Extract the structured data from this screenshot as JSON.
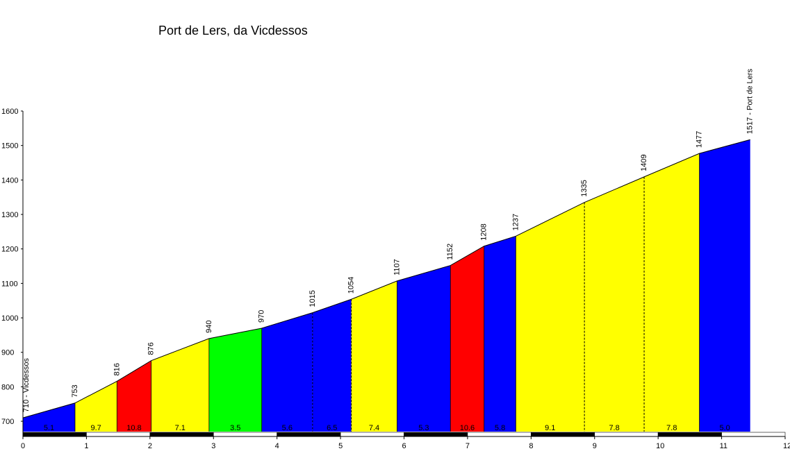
{
  "chart_data": {
    "type": "area",
    "title": "Port de Lers, da Vicdessos",
    "xlim": [
      0,
      12
    ],
    "ylim": [
      670,
      1600
    ],
    "x_ticks": [
      0,
      1,
      2,
      3,
      4,
      5,
      6,
      7,
      8,
      9,
      10,
      11,
      12
    ],
    "y_ticks": [
      700,
      800,
      900,
      1000,
      1100,
      1200,
      1300,
      1400,
      1500,
      1600
    ],
    "points": [
      {
        "x": 0.0,
        "y": 710,
        "label": "710 - Vicdessos"
      },
      {
        "x": 0.82,
        "y": 753,
        "label": "753"
      },
      {
        "x": 1.48,
        "y": 816,
        "label": "816"
      },
      {
        "x": 2.02,
        "y": 876,
        "label": "876"
      },
      {
        "x": 2.93,
        "y": 940,
        "label": "940"
      },
      {
        "x": 3.76,
        "y": 970,
        "label": "970"
      },
      {
        "x": 4.56,
        "y": 1015,
        "label": "1015"
      },
      {
        "x": 5.17,
        "y": 1054,
        "label": "1054"
      },
      {
        "x": 5.89,
        "y": 1107,
        "label": "1107"
      },
      {
        "x": 6.73,
        "y": 1152,
        "label": "1152"
      },
      {
        "x": 7.26,
        "y": 1208,
        "label": "1208"
      },
      {
        "x": 7.76,
        "y": 1237,
        "label": "1237"
      },
      {
        "x": 8.84,
        "y": 1335,
        "label": "1335"
      },
      {
        "x": 9.78,
        "y": 1409,
        "label": "1409"
      },
      {
        "x": 10.65,
        "y": 1477,
        "label": "1477"
      },
      {
        "x": 11.45,
        "y": 1517,
        "label": "1517 - Port de Lers"
      }
    ],
    "segments": [
      {
        "grade": "5.1",
        "color": "#0000FF",
        "split": "solid"
      },
      {
        "grade": "9.7",
        "color": "#FFFF00",
        "split": "solid"
      },
      {
        "grade": "10.8",
        "color": "#FF0000",
        "split": "solid"
      },
      {
        "grade": "7.1",
        "color": "#FFFF00",
        "split": "solid"
      },
      {
        "grade": "3.5",
        "color": "#00FF00",
        "split": "solid"
      },
      {
        "grade": "5.6",
        "color": "#0000FF",
        "split": "dashed"
      },
      {
        "grade": "6.5",
        "color": "#0000FF",
        "split": "dashed"
      },
      {
        "grade": "7.4",
        "color": "#FFFF00",
        "split": "solid"
      },
      {
        "grade": "5.3",
        "color": "#0000FF",
        "split": "solid"
      },
      {
        "grade": "10.6",
        "color": "#FF0000",
        "split": "solid"
      },
      {
        "grade": "5.8",
        "color": "#0000FF",
        "split": "solid"
      },
      {
        "grade": "9.1",
        "color": "#FFFF00",
        "split": "dashed"
      },
      {
        "grade": "7.8",
        "color": "#FFFF00",
        "split": "dashed"
      },
      {
        "grade": "7.8",
        "color": "#FFFF00",
        "split": "solid"
      },
      {
        "grade": "5.0",
        "color": "#0000FF",
        "split": "solid"
      }
    ]
  }
}
